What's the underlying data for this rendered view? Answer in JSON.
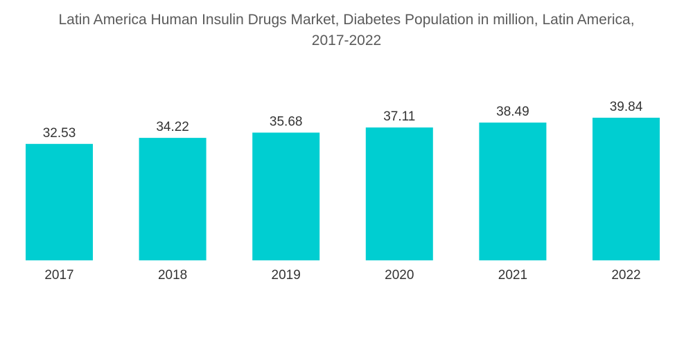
{
  "chart_data": {
    "type": "bar",
    "title_line1": "Latin America Human Insulin Drugs Market, Diabetes Population in million, Latin America,",
    "title_line2": "2017-2022",
    "categories": [
      "2017",
      "2018",
      "2019",
      "2020",
      "2021",
      "2022"
    ],
    "values": [
      32.53,
      34.22,
      35.68,
      37.11,
      38.49,
      39.84
    ],
    "data_labels": [
      "32.53",
      "34.22",
      "35.68",
      "37.11",
      "38.49",
      "39.84"
    ],
    "xlabel": "",
    "ylabel": "",
    "ylim": [
      0,
      39.84
    ],
    "grid": false,
    "legend": "none",
    "bar_color": "#00ced1"
  }
}
